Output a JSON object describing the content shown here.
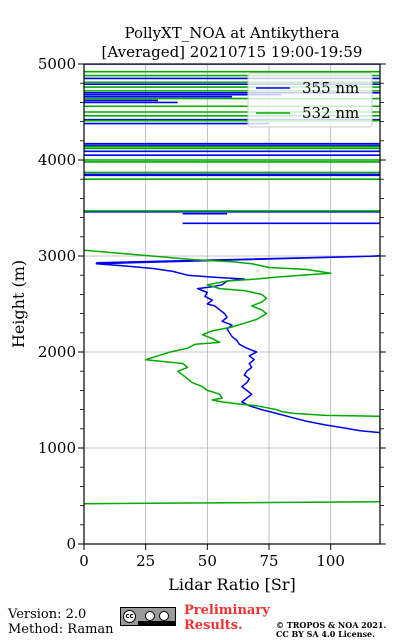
{
  "chart_data": {
    "type": "line",
    "title": "PollyXT_NOA at Antikythera",
    "subtitle": "[Averaged] 20210715 19:00-19:59",
    "xlabel": "Lidar Ratio [Sr]",
    "ylabel": "Height (m)",
    "xlim": [
      0,
      120
    ],
    "ylim": [
      0,
      5000
    ],
    "xticks": [
      0,
      25,
      50,
      75,
      100
    ],
    "yticks": [
      0,
      1000,
      2000,
      3000,
      4000,
      5000
    ],
    "grid": true,
    "legend_position": "top-right",
    "series": [
      {
        "name": "355 nm",
        "color": "#0000ee",
        "points": [
          [
            120,
            1160
          ],
          [
            112,
            1180
          ],
          [
            105,
            1210
          ],
          [
            98,
            1240
          ],
          [
            90,
            1280
          ],
          [
            84,
            1320
          ],
          [
            78,
            1360
          ],
          [
            72,
            1400
          ],
          [
            67,
            1440
          ],
          [
            64,
            1480
          ],
          [
            66,
            1520
          ],
          [
            68,
            1560
          ],
          [
            66,
            1600
          ],
          [
            64,
            1640
          ],
          [
            66,
            1680
          ],
          [
            67,
            1720
          ],
          [
            65,
            1760
          ],
          [
            66,
            1800
          ],
          [
            68,
            1840
          ],
          [
            67,
            1880
          ],
          [
            69,
            1920
          ],
          [
            67,
            1960
          ],
          [
            70,
            2000
          ],
          [
            66,
            2040
          ],
          [
            63,
            2080
          ],
          [
            62,
            2120
          ],
          [
            60,
            2160
          ],
          [
            59,
            2200
          ],
          [
            58,
            2240
          ],
          [
            60,
            2280
          ],
          [
            56,
            2320
          ],
          [
            58,
            2360
          ],
          [
            57,
            2400
          ],
          [
            55,
            2440
          ],
          [
            53,
            2480
          ],
          [
            50,
            2500
          ],
          [
            52,
            2540
          ],
          [
            49,
            2580
          ],
          [
            50,
            2620
          ],
          [
            46,
            2660
          ],
          [
            52,
            2680
          ],
          [
            56,
            2700
          ],
          [
            58,
            2740
          ],
          [
            65,
            2760
          ],
          [
            52,
            2780
          ],
          [
            42,
            2800
          ],
          [
            36,
            2840
          ],
          [
            28,
            2870
          ],
          [
            15,
            2900
          ],
          [
            5,
            2920
          ],
          [
            120,
            3000
          ],
          [
            5,
            2930
          ]
        ],
        "spikes": [
          [
            40,
            3340,
            120
          ],
          [
            40,
            3440,
            58
          ],
          [
            0,
            3460,
            120
          ],
          [
            0,
            3840,
            120
          ],
          [
            0,
            3850,
            120
          ],
          [
            0,
            4050,
            120
          ],
          [
            0,
            4090,
            120
          ],
          [
            0,
            4150,
            120
          ],
          [
            0,
            4170,
            120
          ],
          [
            0,
            4380,
            75
          ],
          [
            0,
            4420,
            120
          ],
          [
            0,
            4600,
            38
          ],
          [
            0,
            4620,
            30
          ],
          [
            0,
            4660,
            60
          ],
          [
            0,
            4680,
            80
          ],
          [
            0,
            4700,
            120
          ],
          [
            0,
            4790,
            120
          ],
          [
            0,
            4850,
            120
          ],
          [
            0,
            5000,
            120
          ]
        ]
      },
      {
        "name": "532 nm",
        "color": "#00aa00",
        "points": [
          [
            0,
            420
          ],
          [
            120,
            440
          ],
          [
            120,
            1330
          ],
          [
            98,
            1340
          ],
          [
            85,
            1360
          ],
          [
            80,
            1380
          ],
          [
            78,
            1400
          ],
          [
            74,
            1420
          ],
          [
            70,
            1440
          ],
          [
            62,
            1460
          ],
          [
            56,
            1480
          ],
          [
            52,
            1500
          ],
          [
            56,
            1520
          ],
          [
            55,
            1560
          ],
          [
            50,
            1600
          ],
          [
            48,
            1640
          ],
          [
            44,
            1680
          ],
          [
            42,
            1720
          ],
          [
            40,
            1760
          ],
          [
            38,
            1800
          ],
          [
            42,
            1840
          ],
          [
            40,
            1880
          ],
          [
            25,
            1920
          ],
          [
            30,
            1960
          ],
          [
            35,
            2000
          ],
          [
            42,
            2040
          ],
          [
            45,
            2080
          ],
          [
            55,
            2100
          ],
          [
            52,
            2140
          ],
          [
            48,
            2180
          ],
          [
            52,
            2220
          ],
          [
            60,
            2260
          ],
          [
            65,
            2300
          ],
          [
            70,
            2340
          ],
          [
            74,
            2400
          ],
          [
            72,
            2440
          ],
          [
            68,
            2480
          ],
          [
            72,
            2520
          ],
          [
            74,
            2560
          ],
          [
            72,
            2600
          ],
          [
            65,
            2640
          ],
          [
            55,
            2660
          ],
          [
            50,
            2700
          ],
          [
            58,
            2740
          ],
          [
            70,
            2760
          ],
          [
            78,
            2780
          ],
          [
            88,
            2800
          ],
          [
            100,
            2820
          ],
          [
            90,
            2860
          ],
          [
            75,
            2880
          ],
          [
            68,
            2920
          ],
          [
            60,
            2940
          ],
          [
            45,
            2960
          ],
          [
            0,
            3060
          ]
        ],
        "spikes": [
          [
            0,
            3470,
            120
          ],
          [
            0,
            3800,
            120
          ],
          [
            0,
            3870,
            120
          ],
          [
            0,
            3980,
            120
          ],
          [
            0,
            4000,
            120
          ],
          [
            0,
            4120,
            120
          ],
          [
            0,
            4140,
            120
          ],
          [
            0,
            4410,
            120
          ],
          [
            0,
            4460,
            120
          ],
          [
            0,
            4500,
            120
          ],
          [
            0,
            4560,
            120
          ],
          [
            0,
            4640,
            120
          ],
          [
            0,
            4720,
            120
          ],
          [
            0,
            4760,
            120
          ],
          [
            0,
            4810,
            120
          ],
          [
            0,
            4880,
            120
          ],
          [
            0,
            4920,
            120
          ]
        ]
      }
    ]
  },
  "footer": {
    "version": "Version: 2.0",
    "method": "Method: Raman",
    "license_badge": "cc-by-sa-badge",
    "preliminary_line1": "Preliminary",
    "preliminary_line2": "Results.",
    "copyright_line1": "© TROPOS & NOA 2021.",
    "copyright_line2": "CC BY SA 4.0 License."
  }
}
